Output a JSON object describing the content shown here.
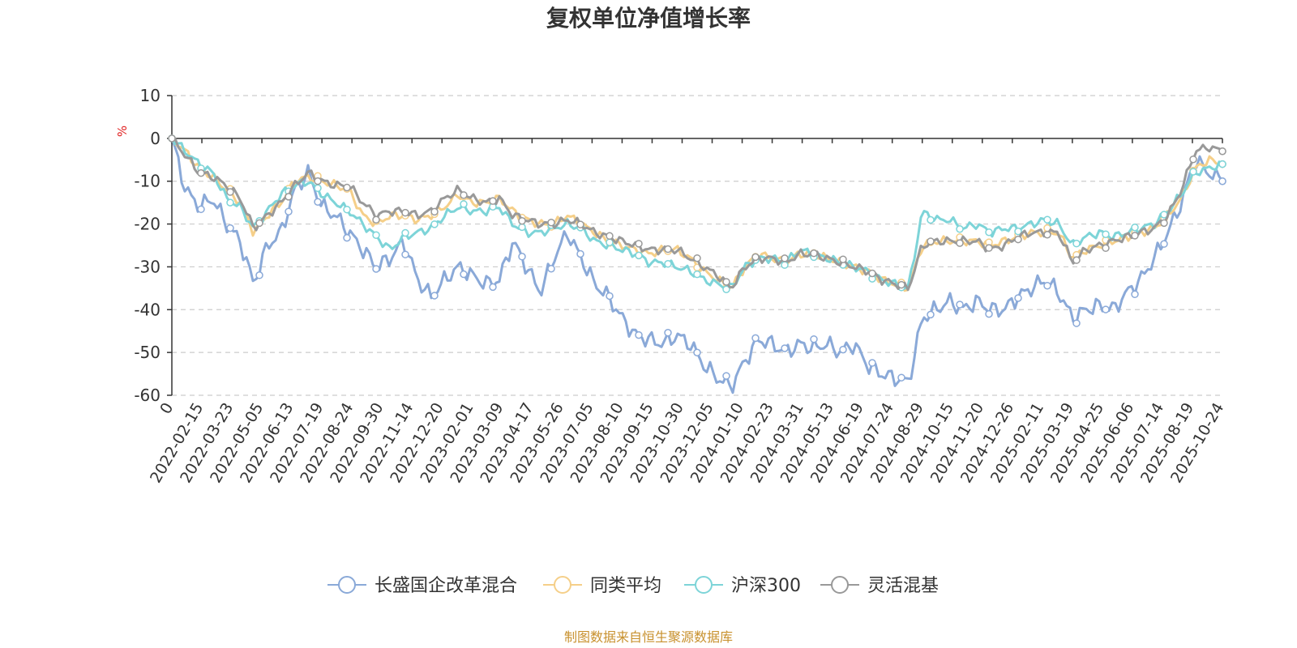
{
  "chart_data": {
    "type": "line",
    "title": "复权单位净值增长率",
    "ylabel": "%",
    "xlabel": "",
    "ylim": [
      -60,
      10
    ],
    "y_ticks": [
      10,
      0,
      -10,
      -20,
      -30,
      -40,
      -50,
      -60
    ],
    "grid": true,
    "legend_position": "bottom",
    "source": "制图数据来自恒生聚源数据库",
    "x_tick_labels": [
      "0",
      "2022-02-15",
      "2022-03-23",
      "2022-05-05",
      "2022-06-13",
      "2022-07-19",
      "2022-08-24",
      "2022-09-30",
      "2022-11-14",
      "2022-12-20",
      "2023-02-01",
      "2023-03-09",
      "2023-04-17",
      "2023-05-26",
      "2023-07-05",
      "2023-08-10",
      "2023-09-15",
      "2023-10-30",
      "2023-12-05",
      "2024-01-10",
      "2024-02-23",
      "2024-03-31",
      "2024-05-13",
      "2024-06-19",
      "2024-07-24",
      "2024-08-29",
      "2024-10-15",
      "2024-11-20",
      "2024-12-26",
      "2025-02-11",
      "2025-03-19",
      "2025-04-25",
      "2025-06-06",
      "2025-07-14",
      "2025-08-19",
      "2025-10-24"
    ],
    "series": [
      {
        "name": "长盛国企改革混合",
        "color": "#8aa9d8",
        "values": [
          0,
          -12,
          -16,
          -14,
          -20,
          -24,
          -34,
          -25,
          -22,
          -12,
          -8,
          -16,
          -18,
          -22,
          -26,
          -30,
          -28,
          -24,
          -33,
          -37,
          -33,
          -30,
          -32,
          -34,
          -33,
          -24,
          -30,
          -36,
          -28,
          -22,
          -28,
          -34,
          -37,
          -42,
          -46,
          -47,
          -48,
          -46,
          -48,
          -53,
          -56,
          -58,
          -52,
          -47,
          -48,
          -50,
          -48,
          -49,
          -48,
          -50,
          -48,
          -53,
          -55,
          -56,
          -57,
          -42,
          -40,
          -38,
          -40,
          -38,
          -40,
          -40,
          -37,
          -35,
          -33,
          -36,
          -42,
          -40,
          -39,
          -40,
          -36,
          -33,
          -28,
          -22,
          -15,
          -5,
          -8,
          -10
        ]
      },
      {
        "name": "同类平均",
        "color": "#f5cf89",
        "values": [
          0,
          -3,
          -7,
          -9,
          -12,
          -15,
          -22,
          -18,
          -15,
          -10,
          -9,
          -10,
          -11,
          -12,
          -18,
          -20,
          -18,
          -18,
          -19,
          -18,
          -16,
          -13,
          -15,
          -15,
          -14,
          -17,
          -19,
          -20,
          -20,
          -18,
          -20,
          -22,
          -24,
          -25,
          -26,
          -27,
          -26,
          -26,
          -28,
          -31,
          -33,
          -35,
          -30,
          -27,
          -28,
          -29,
          -27,
          -27,
          -28,
          -29,
          -30,
          -31,
          -33,
          -34,
          -35,
          -25,
          -24,
          -24,
          -24,
          -24,
          -25,
          -24,
          -23,
          -22,
          -22,
          -22,
          -28,
          -26,
          -25,
          -24,
          -23,
          -22,
          -21,
          -18,
          -14,
          -7,
          -5,
          -6
        ]
      },
      {
        "name": "沪深300",
        "color": "#7dd4d8",
        "values": [
          0,
          -3,
          -6,
          -8,
          -14,
          -16,
          -21,
          -17,
          -13,
          -11,
          -10,
          -13,
          -15,
          -17,
          -20,
          -23,
          -26,
          -23,
          -22,
          -21,
          -18,
          -16,
          -17,
          -17,
          -16,
          -20,
          -22,
          -22,
          -21,
          -20,
          -21,
          -24,
          -25,
          -26,
          -27,
          -29,
          -29,
          -30,
          -31,
          -33,
          -34,
          -35,
          -30,
          -28,
          -28,
          -29,
          -26,
          -27,
          -28,
          -29,
          -30,
          -31,
          -33,
          -34,
          -35,
          -17,
          -19,
          -19,
          -21,
          -20,
          -22,
          -21,
          -21,
          -20,
          -19,
          -20,
          -25,
          -23,
          -22,
          -23,
          -22,
          -21,
          -20,
          -17,
          -13,
          -8,
          -7,
          -6
        ]
      },
      {
        "name": "灵活混基",
        "color": "#999999",
        "values": [
          0,
          -4,
          -8,
          -9,
          -11,
          -14,
          -21,
          -18,
          -15,
          -11,
          -8,
          -10,
          -11,
          -11,
          -15,
          -18,
          -17,
          -17,
          -18,
          -17,
          -14,
          -12,
          -14,
          -15,
          -14,
          -18,
          -19,
          -20,
          -20,
          -19,
          -20,
          -22,
          -23,
          -24,
          -25,
          -26,
          -26,
          -26,
          -28,
          -30,
          -32,
          -35,
          -30,
          -28,
          -28,
          -29,
          -27,
          -27,
          -28,
          -29,
          -30,
          -31,
          -33,
          -34,
          -35,
          -25,
          -24,
          -24,
          -24,
          -24,
          -26,
          -25,
          -23,
          -22,
          -22,
          -22,
          -29,
          -26,
          -25,
          -24,
          -23,
          -22,
          -21,
          -18,
          -12,
          -3,
          -2,
          -3
        ]
      }
    ]
  }
}
